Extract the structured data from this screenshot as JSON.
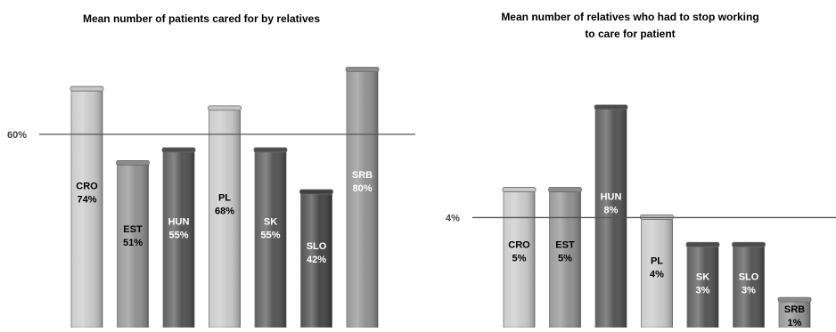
{
  "chart_data": [
    {
      "type": "bar",
      "title": "Mean number of patients cared for by relatives",
      "xlabel": "",
      "ylabel": "",
      "categories": [
        "CRO",
        "EST",
        "HUN",
        "PL",
        "SK",
        "SLO",
        "SRB"
      ],
      "values": [
        74,
        51,
        55,
        68,
        55,
        42,
        80
      ],
      "value_labels": [
        "74%",
        "51%",
        "55%",
        "68%",
        "55%",
        "42%",
        "80%"
      ],
      "bar_colors": [
        "#c6c6c6",
        "#8c8c8c",
        "#4d4d4d",
        "#c6c6c6",
        "#4d4d4d",
        "#3e3e3e",
        "#8c8c8c"
      ],
      "label_colors": [
        "#000000",
        "#000000",
        "#ffffff",
        "#000000",
        "#ffffff",
        "#ffffff",
        "#ffffff"
      ],
      "reference_line": {
        "value": 60,
        "label": "60%"
      },
      "ylim": [
        0,
        84
      ],
      "grid": false,
      "legend": "none"
    },
    {
      "type": "bar",
      "title": "Mean number of relatives who had to stop working to care for patient",
      "xlabel": "",
      "ylabel": "",
      "categories": [
        "CRO",
        "EST",
        "HUN",
        "PL",
        "SK",
        "SLO",
        "SRB"
      ],
      "values": [
        5,
        5,
        8,
        4,
        3,
        3,
        1
      ],
      "value_labels": [
        "5%",
        "5%",
        "8%",
        "4%",
        "3%",
        "3%",
        "1%"
      ],
      "bar_colors": [
        "#c6c6c6",
        "#8c8c8c",
        "#4d4d4d",
        "#c6c6c6",
        "#4d4d4d",
        "#4d4d4d",
        "#8c8c8c"
      ],
      "label_colors": [
        "#000000",
        "#000000",
        "#ffffff",
        "#000000",
        "#ffffff",
        "#ffffff",
        "#000000"
      ],
      "reference_line": {
        "value": 4,
        "label": "4%"
      },
      "ylim": [
        0,
        9
      ],
      "grid": false,
      "legend": "none"
    }
  ]
}
